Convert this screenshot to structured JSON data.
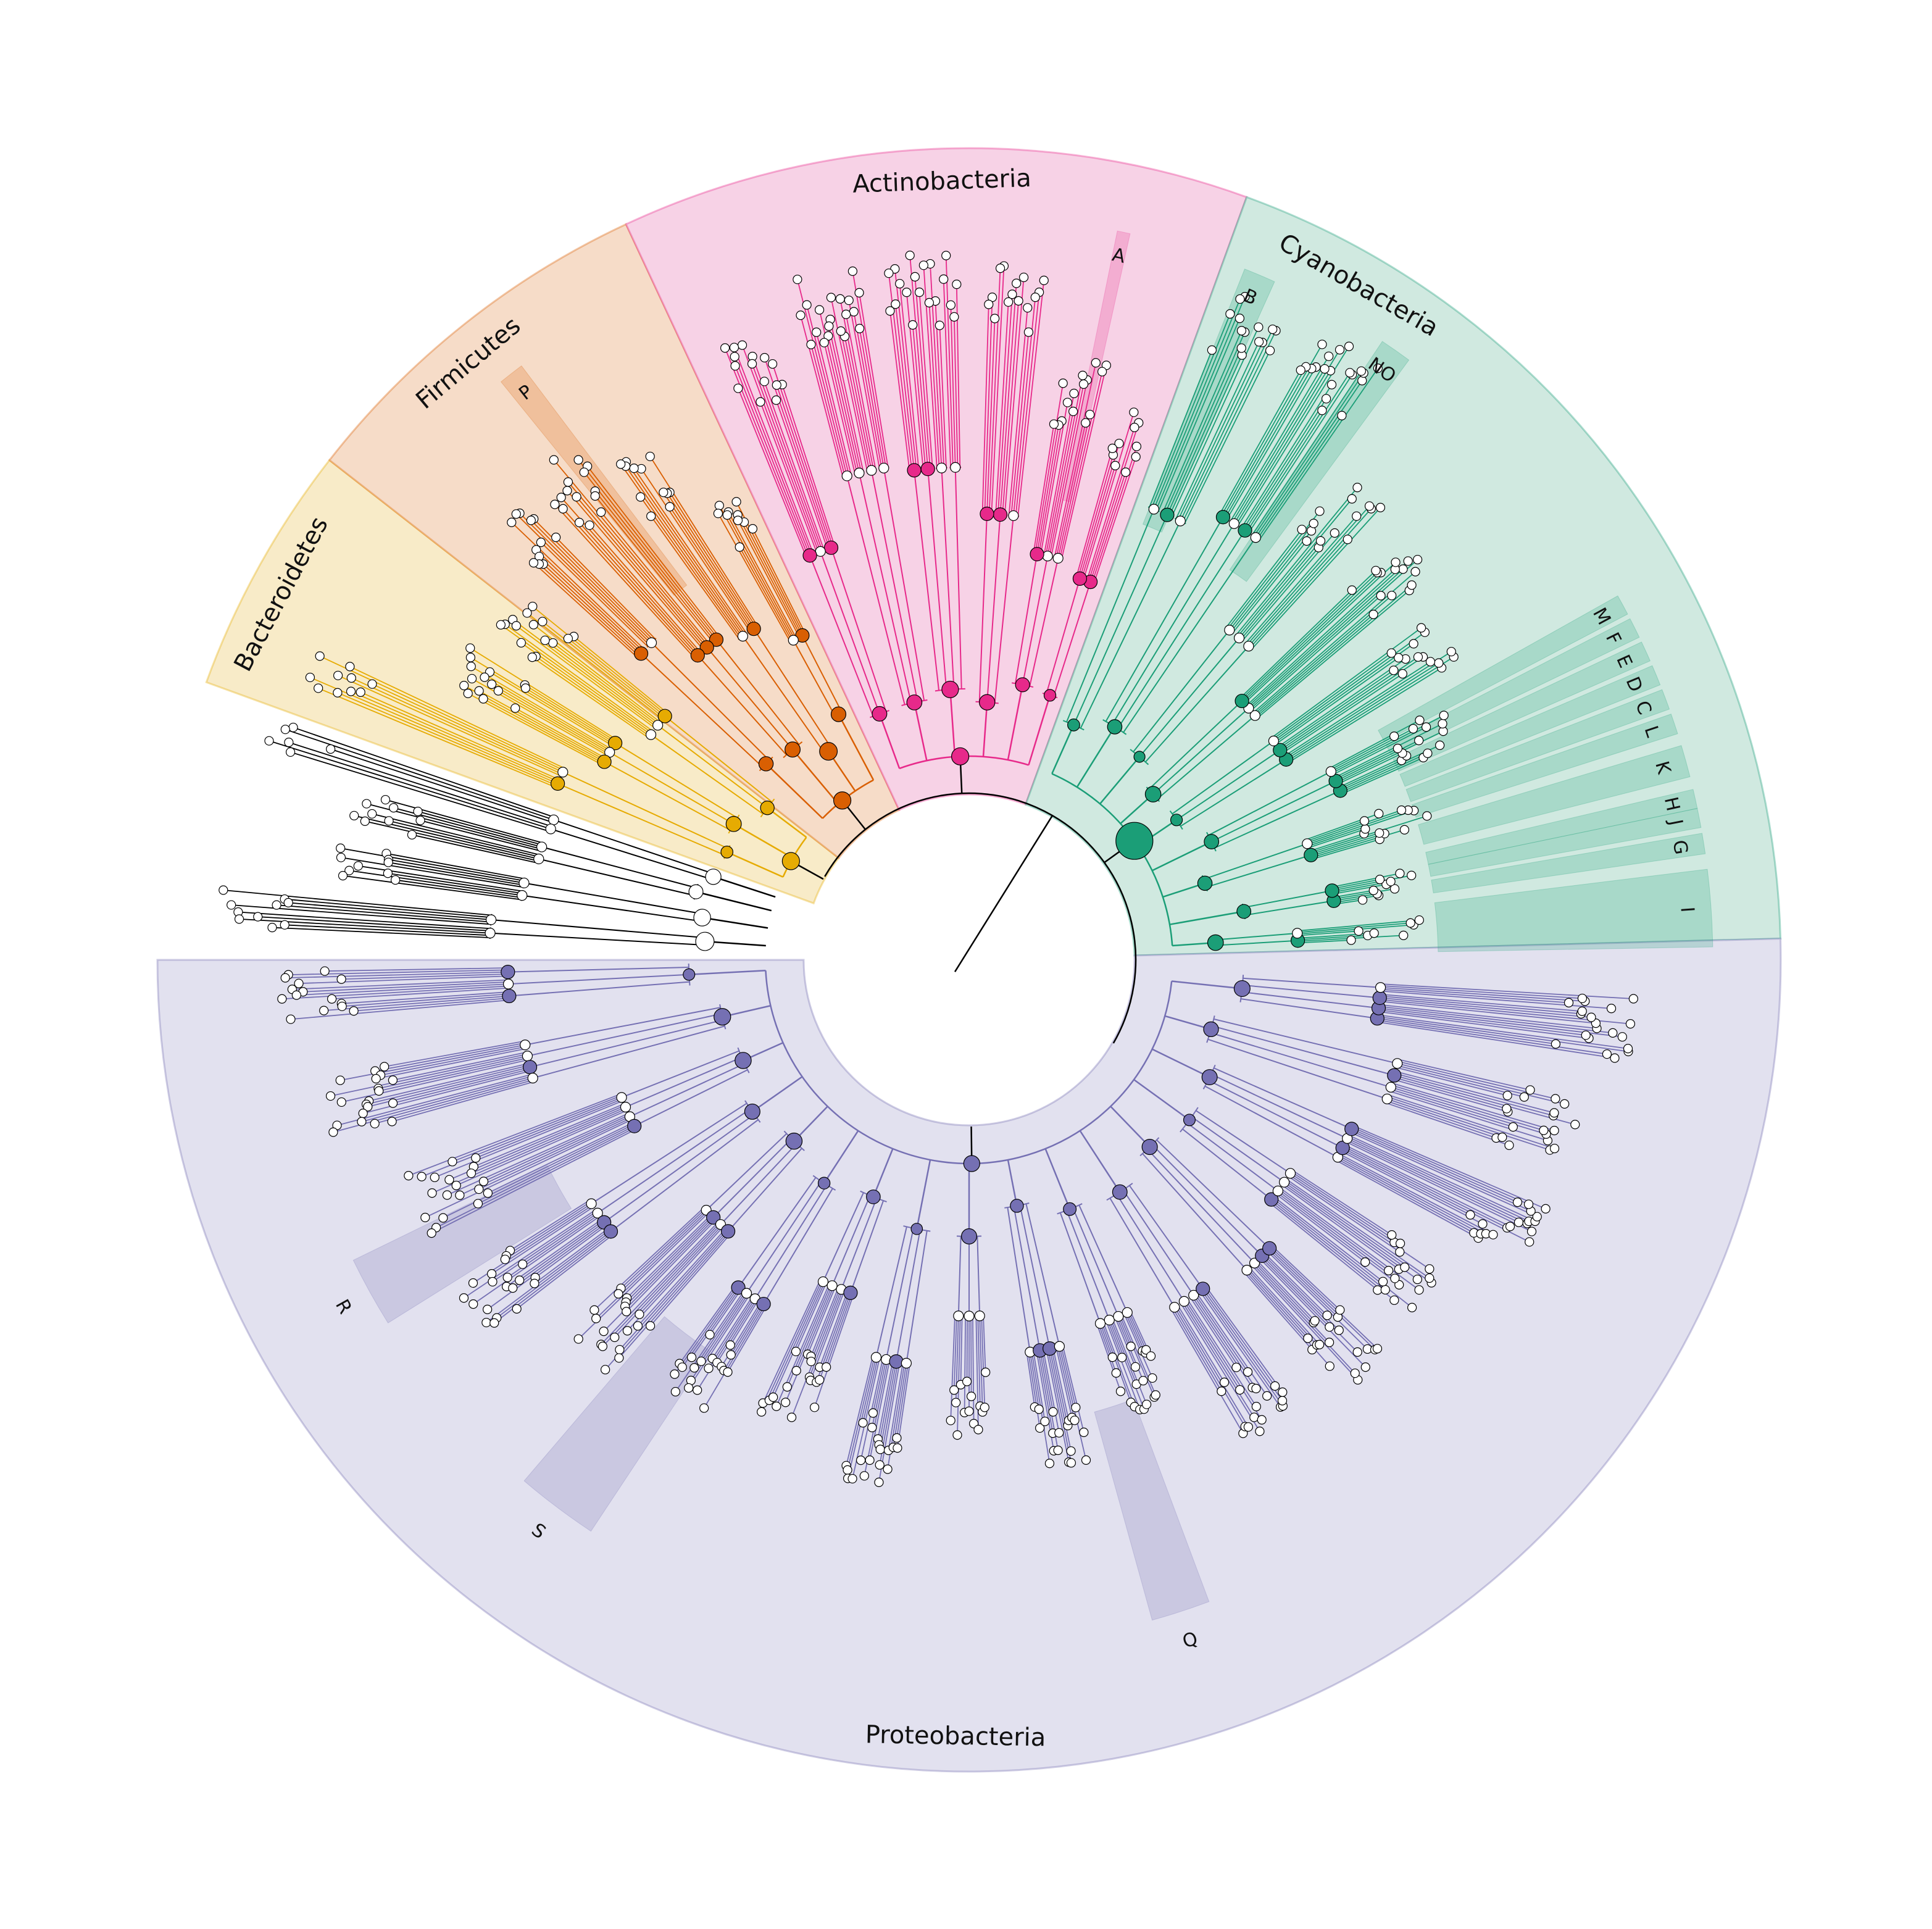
{
  "root": {
    "color": "#000000"
  },
  "phyla": [
    {
      "id": "bacteroidetes",
      "name": "Bacteroidetes",
      "color": "#e6ab02",
      "bg": "#f8ebc8",
      "branches": [
        {
          "a": 156,
          "leaves": 10,
          "depth": 1.0
        },
        {
          "a": 150,
          "leaves": 14,
          "depth": 0.8
        },
        {
          "a": 143,
          "leaves": 16,
          "depth": 0.7
        }
      ]
    },
    {
      "id": "firmicutes",
      "name": "Firmicutes",
      "color": "#d95f02",
      "bg": "#f6dcc8",
      "branches": [
        {
          "a": 136,
          "leaves": 12,
          "depth": 0.9
        },
        {
          "a": 130,
          "leaves": 16,
          "depth": 0.85
        },
        {
          "a": 124,
          "leaves": 12,
          "depth": 0.75
        },
        {
          "a": 118,
          "leaves": 10,
          "depth": 0.65
        }
      ]
    },
    {
      "id": "actinobacteria",
      "name": "Actinobacteria",
      "color": "#e7298a",
      "bg": "#f7d2e6",
      "branches": [
        {
          "a": 110,
          "leaves": 14,
          "depth": 0.95
        },
        {
          "a": 102,
          "leaves": 18,
          "depth": 1.0
        },
        {
          "a": 94,
          "leaves": 20,
          "depth": 1.0
        },
        {
          "a": 86,
          "leaves": 16,
          "depth": 0.9
        },
        {
          "a": 79,
          "leaves": 14,
          "depth": 0.85
        },
        {
          "a": 73,
          "leaves": 10,
          "depth": 0.75
        }
      ]
    },
    {
      "id": "cyanobacteria",
      "name": "Cyanobacteria",
      "color": "#1b9e77",
      "bg": "#d0e9e0",
      "branches": [
        {
          "a": 66,
          "leaves": 16,
          "depth": 1.0
        },
        {
          "a": 58,
          "leaves": 18,
          "depth": 0.95
        },
        {
          "a": 50,
          "leaves": 16,
          "depth": 0.85
        },
        {
          "a": 42,
          "leaves": 14,
          "depth": 0.8
        },
        {
          "a": 34,
          "leaves": 16,
          "depth": 0.75
        },
        {
          "a": 26,
          "leaves": 14,
          "depth": 0.65
        },
        {
          "a": 18,
          "leaves": 12,
          "depth": 0.55
        },
        {
          "a": 10,
          "leaves": 10,
          "depth": 0.5
        },
        {
          "a": 4,
          "leaves": 8,
          "depth": 0.45
        }
      ]
    },
    {
      "id": "proteobacteria",
      "name": "Proteobacteria",
      "color": "#7570b3",
      "bg": "#e2e1ef",
      "branches": [
        {
          "a": -6,
          "leaves": 18,
          "depth": 0.85
        },
        {
          "a": -16,
          "leaves": 20,
          "depth": 0.85
        },
        {
          "a": -26,
          "leaves": 18,
          "depth": 0.8
        },
        {
          "a": -36,
          "leaves": 20,
          "depth": 0.75
        },
        {
          "a": -46,
          "leaves": 18,
          "depth": 0.7
        },
        {
          "a": -57,
          "leaves": 20,
          "depth": 0.65
        },
        {
          "a": -68,
          "leaves": 18,
          "depth": 0.6
        },
        {
          "a": -79,
          "leaves": 18,
          "depth": 0.6
        },
        {
          "a": -90,
          "leaves": 16,
          "depth": 0.55
        },
        {
          "a": -101,
          "leaves": 18,
          "depth": 0.6
        },
        {
          "a": -112,
          "leaves": 20,
          "depth": 0.6
        },
        {
          "a": -123,
          "leaves": 18,
          "depth": 0.65
        },
        {
          "a": -134,
          "leaves": 20,
          "depth": 0.7
        },
        {
          "a": -145,
          "leaves": 18,
          "depth": 0.75
        },
        {
          "a": -156,
          "leaves": 20,
          "depth": 0.8
        },
        {
          "a": -167,
          "leaves": 18,
          "depth": 0.85
        },
        {
          "a": -177,
          "leaves": 14,
          "depth": 0.9
        }
      ]
    }
  ],
  "unclassified": {
    "color": "#000000",
    "branches": [
      {
        "a": 176,
        "leaves": 10,
        "depth": 1.0
      },
      {
        "a": 171,
        "leaves": 10,
        "depth": 0.9
      },
      {
        "a": 166,
        "leaves": 10,
        "depth": 0.8
      },
      {
        "a": 162,
        "leaves": 6,
        "depth": 1.0
      }
    ]
  },
  "clade_highlights": [
    {
      "label": "A",
      "phylum": "actinobacteria",
      "a_center": 78,
      "a_width": 1.0,
      "label_a": 78
    },
    {
      "label": "B",
      "phylum": "cyanobacteria",
      "a_center": 67,
      "a_width": 2.5,
      "label_a": 67
    },
    {
      "label": "NO",
      "phylum": "cyanobacteria",
      "a_center": 55,
      "a_width": 2.5,
      "label_a": 55
    },
    {
      "label": "M",
      "phylum": "cyanobacteria",
      "a_center": 28.5,
      "a_width": 1.6,
      "label_a": 28.5
    },
    {
      "label": "F",
      "phylum": "cyanobacteria",
      "a_center": 26.5,
      "a_width": 1.6,
      "label_a": 26.5
    },
    {
      "label": "E",
      "phylum": "cyanobacteria",
      "a_center": 24.5,
      "a_width": 1.6,
      "label_a": 24.5
    },
    {
      "label": "D",
      "phylum": "cyanobacteria",
      "a_center": 22.5,
      "a_width": 1.6,
      "label_a": 22.5
    },
    {
      "label": "C",
      "phylum": "cyanobacteria",
      "a_center": 20.5,
      "a_width": 1.6,
      "label_a": 20.5
    },
    {
      "label": "L",
      "phylum": "cyanobacteria",
      "a_center": 18.5,
      "a_width": 1.6,
      "label_a": 18.5
    },
    {
      "label": "K",
      "phylum": "cyanobacteria",
      "a_center": 15.5,
      "a_width": 2.5,
      "label_a": 15.5
    },
    {
      "label": "H",
      "phylum": "cyanobacteria",
      "a_center": 12.5,
      "a_width": 1.5,
      "label_a": 12.5
    },
    {
      "label": "J",
      "phylum": "cyanobacteria",
      "a_center": 11,
      "a_width": 1.5,
      "label_a": 11
    },
    {
      "label": "G",
      "phylum": "cyanobacteria",
      "a_center": 9,
      "a_width": 1.6,
      "label_a": 9
    },
    {
      "label": "I",
      "phylum": "cyanobacteria",
      "a_center": 4,
      "a_width": 6,
      "label_a": 4
    },
    {
      "label": "P",
      "phylum": "firmicutes",
      "a_center": 128,
      "a_width": 2.0,
      "label_a": 128
    },
    {
      "label": "R",
      "phylum": "proteobacteria",
      "a_center": -151,
      "a_width": 6,
      "label_a": -151
    },
    {
      "label": "S",
      "phylum": "proteobacteria",
      "a_center": -127,
      "a_width": 7,
      "label_a": -127
    },
    {
      "label": "Q",
      "phylum": "proteobacteria",
      "a_center": -72,
      "a_width": 5,
      "label_a": -72
    }
  ]
}
